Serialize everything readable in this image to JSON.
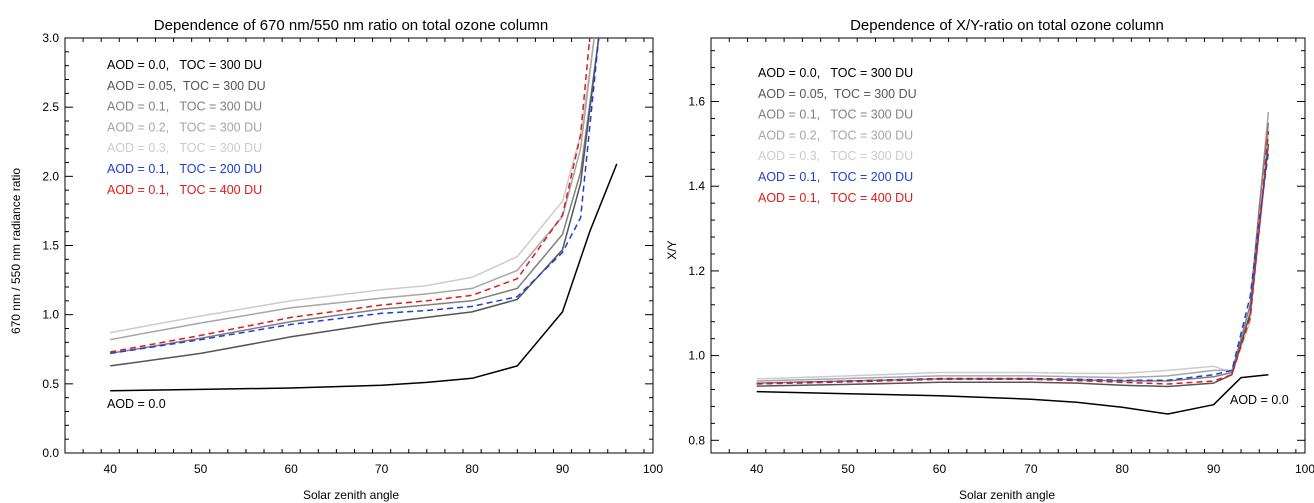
{
  "chart_data": [
    {
      "type": "line",
      "title": "Dependence of 670 nm/550 nm ratio on total ozone column",
      "xlabel": "Solar zenith angle",
      "ylabel": "670 nm / 550 nm radiance ratio",
      "xlim": [
        35,
        100
      ],
      "ylim": [
        0.0,
        3.0
      ],
      "xticks": [
        "40",
        "50",
        "60",
        "70",
        "80",
        "90",
        "100"
      ],
      "yticks": [
        "0.0",
        "0.5",
        "1.0",
        "1.5",
        "2.0",
        "2.5",
        "3.0"
      ],
      "legend_position": "top-left",
      "annotation": "AOD = 0.0",
      "series": [
        {
          "name": "AOD = 0.0,   TOC = 300 DU",
          "color": "#000000",
          "dash": false,
          "x": [
            40,
            50,
            60,
            70,
            75,
            80,
            85,
            90,
            93,
            96
          ],
          "y": [
            0.45,
            0.46,
            0.47,
            0.49,
            0.51,
            0.54,
            0.63,
            1.02,
            1.6,
            2.09
          ]
        },
        {
          "name": "AOD = 0.05,  TOC = 300 DU",
          "color": "#555555",
          "dash": false,
          "x": [
            40,
            50,
            60,
            70,
            75,
            80,
            85,
            90,
            92,
            94
          ],
          "y": [
            0.63,
            0.72,
            0.84,
            0.94,
            0.98,
            1.02,
            1.11,
            1.47,
            1.95,
            3.0
          ]
        },
        {
          "name": "AOD = 0.1,   TOC = 300 DU",
          "color": "#808080",
          "dash": false,
          "x": [
            40,
            50,
            60,
            70,
            75,
            80,
            85,
            90,
            92,
            94
          ],
          "y": [
            0.72,
            0.83,
            0.95,
            1.04,
            1.07,
            1.1,
            1.19,
            1.58,
            2.03,
            3.0
          ]
        },
        {
          "name": "AOD = 0.2,   TOC = 300 DU",
          "color": "#a6a6a6",
          "dash": false,
          "x": [
            40,
            50,
            60,
            70,
            75,
            80,
            85,
            90,
            92,
            93.5
          ],
          "y": [
            0.82,
            0.94,
            1.05,
            1.12,
            1.15,
            1.19,
            1.32,
            1.71,
            2.2,
            3.0
          ]
        },
        {
          "name": "AOD = 0.3,   TOC = 300 DU",
          "color": "#cccccc",
          "dash": false,
          "x": [
            40,
            50,
            60,
            70,
            75,
            80,
            85,
            90,
            92,
            93.5
          ],
          "y": [
            0.87,
            0.99,
            1.1,
            1.18,
            1.21,
            1.27,
            1.42,
            1.82,
            2.3,
            3.0
          ]
        },
        {
          "name": "AOD = 0.1,   TOC = 200 DU",
          "color": "#1f3fd6",
          "dash": true,
          "x": [
            40,
            50,
            60,
            70,
            75,
            80,
            85,
            90,
            92,
            94
          ],
          "y": [
            0.72,
            0.82,
            0.93,
            1.01,
            1.03,
            1.06,
            1.13,
            1.45,
            1.7,
            3.0
          ]
        },
        {
          "name": "AOD = 0.1,   TOC = 400 DU",
          "color": "#e01b1b",
          "dash": true,
          "x": [
            40,
            50,
            60,
            70,
            75,
            80,
            85,
            90,
            92,
            93
          ],
          "y": [
            0.73,
            0.85,
            0.98,
            1.07,
            1.1,
            1.14,
            1.26,
            1.72,
            2.3,
            3.0
          ]
        }
      ]
    },
    {
      "type": "line",
      "title": "Dependence of X/Y-ratio on total ozone column",
      "xlabel": "Solar zenith angle",
      "ylabel": "X/Y",
      "xlim": [
        35,
        100
      ],
      "ylim": [
        0.77,
        1.75
      ],
      "xticks": [
        "40",
        "50",
        "60",
        "70",
        "80",
        "90",
        "100"
      ],
      "yticks": [
        "0.8",
        "1.0",
        "1.2",
        "1.4",
        "1.6"
      ],
      "legend_position": "top-left",
      "annotation": "AOD = 0.0",
      "series": [
        {
          "name": "AOD = 0.0,   TOC = 300 DU",
          "color": "#000000",
          "dash": false,
          "x": [
            40,
            50,
            60,
            70,
            75,
            80,
            85,
            90,
            93,
            96
          ],
          "y": [
            0.915,
            0.91,
            0.905,
            0.897,
            0.89,
            0.878,
            0.862,
            0.884,
            0.948,
            0.955
          ]
        },
        {
          "name": "AOD = 0.05,  TOC = 300 DU",
          "color": "#555555",
          "dash": false,
          "x": [
            40,
            50,
            60,
            70,
            75,
            80,
            85,
            90,
            92,
            94,
            95,
            96
          ],
          "y": [
            0.928,
            0.932,
            0.937,
            0.937,
            0.935,
            0.93,
            0.927,
            0.935,
            0.955,
            1.1,
            1.3,
            1.5
          ]
        },
        {
          "name": "AOD = 0.1,   TOC = 300 DU",
          "color": "#808080",
          "dash": false,
          "x": [
            40,
            50,
            60,
            70,
            75,
            80,
            85,
            90,
            92,
            94,
            95,
            96
          ],
          "y": [
            0.935,
            0.94,
            0.945,
            0.945,
            0.943,
            0.94,
            0.94,
            0.95,
            0.96,
            1.12,
            1.35,
            1.55
          ]
        },
        {
          "name": "AOD = 0.2,   TOC = 300 DU",
          "color": "#a6a6a6",
          "dash": false,
          "x": [
            40,
            50,
            60,
            70,
            75,
            80,
            85,
            90,
            92,
            94,
            95,
            96
          ],
          "y": [
            0.94,
            0.946,
            0.952,
            0.952,
            0.95,
            0.948,
            0.952,
            0.965,
            0.965,
            1.1,
            1.35,
            1.575
          ]
        },
        {
          "name": "AOD = 0.3,   TOC = 300 DU",
          "color": "#cccccc",
          "dash": false,
          "x": [
            40,
            50,
            60,
            70,
            75,
            80,
            85,
            90,
            92,
            94,
            95,
            96
          ],
          "y": [
            0.945,
            0.952,
            0.96,
            0.96,
            0.958,
            0.958,
            0.965,
            0.975,
            0.96,
            1.08,
            1.3,
            1.52
          ]
        },
        {
          "name": "AOD = 0.1,   TOC = 200 DU",
          "color": "#1f3fd6",
          "dash": true,
          "x": [
            40,
            50,
            60,
            70,
            75,
            80,
            85,
            90,
            92,
            94,
            95,
            96
          ],
          "y": [
            0.934,
            0.94,
            0.946,
            0.946,
            0.944,
            0.942,
            0.942,
            0.955,
            0.965,
            1.14,
            1.32,
            1.48
          ]
        },
        {
          "name": "AOD = 0.1,   TOC = 400 DU",
          "color": "#e01b1b",
          "dash": true,
          "x": [
            40,
            50,
            60,
            70,
            75,
            80,
            85,
            90,
            92,
            94,
            95,
            96
          ],
          "y": [
            0.933,
            0.938,
            0.944,
            0.944,
            0.941,
            0.937,
            0.933,
            0.94,
            0.955,
            1.09,
            1.3,
            1.53
          ]
        }
      ]
    }
  ]
}
